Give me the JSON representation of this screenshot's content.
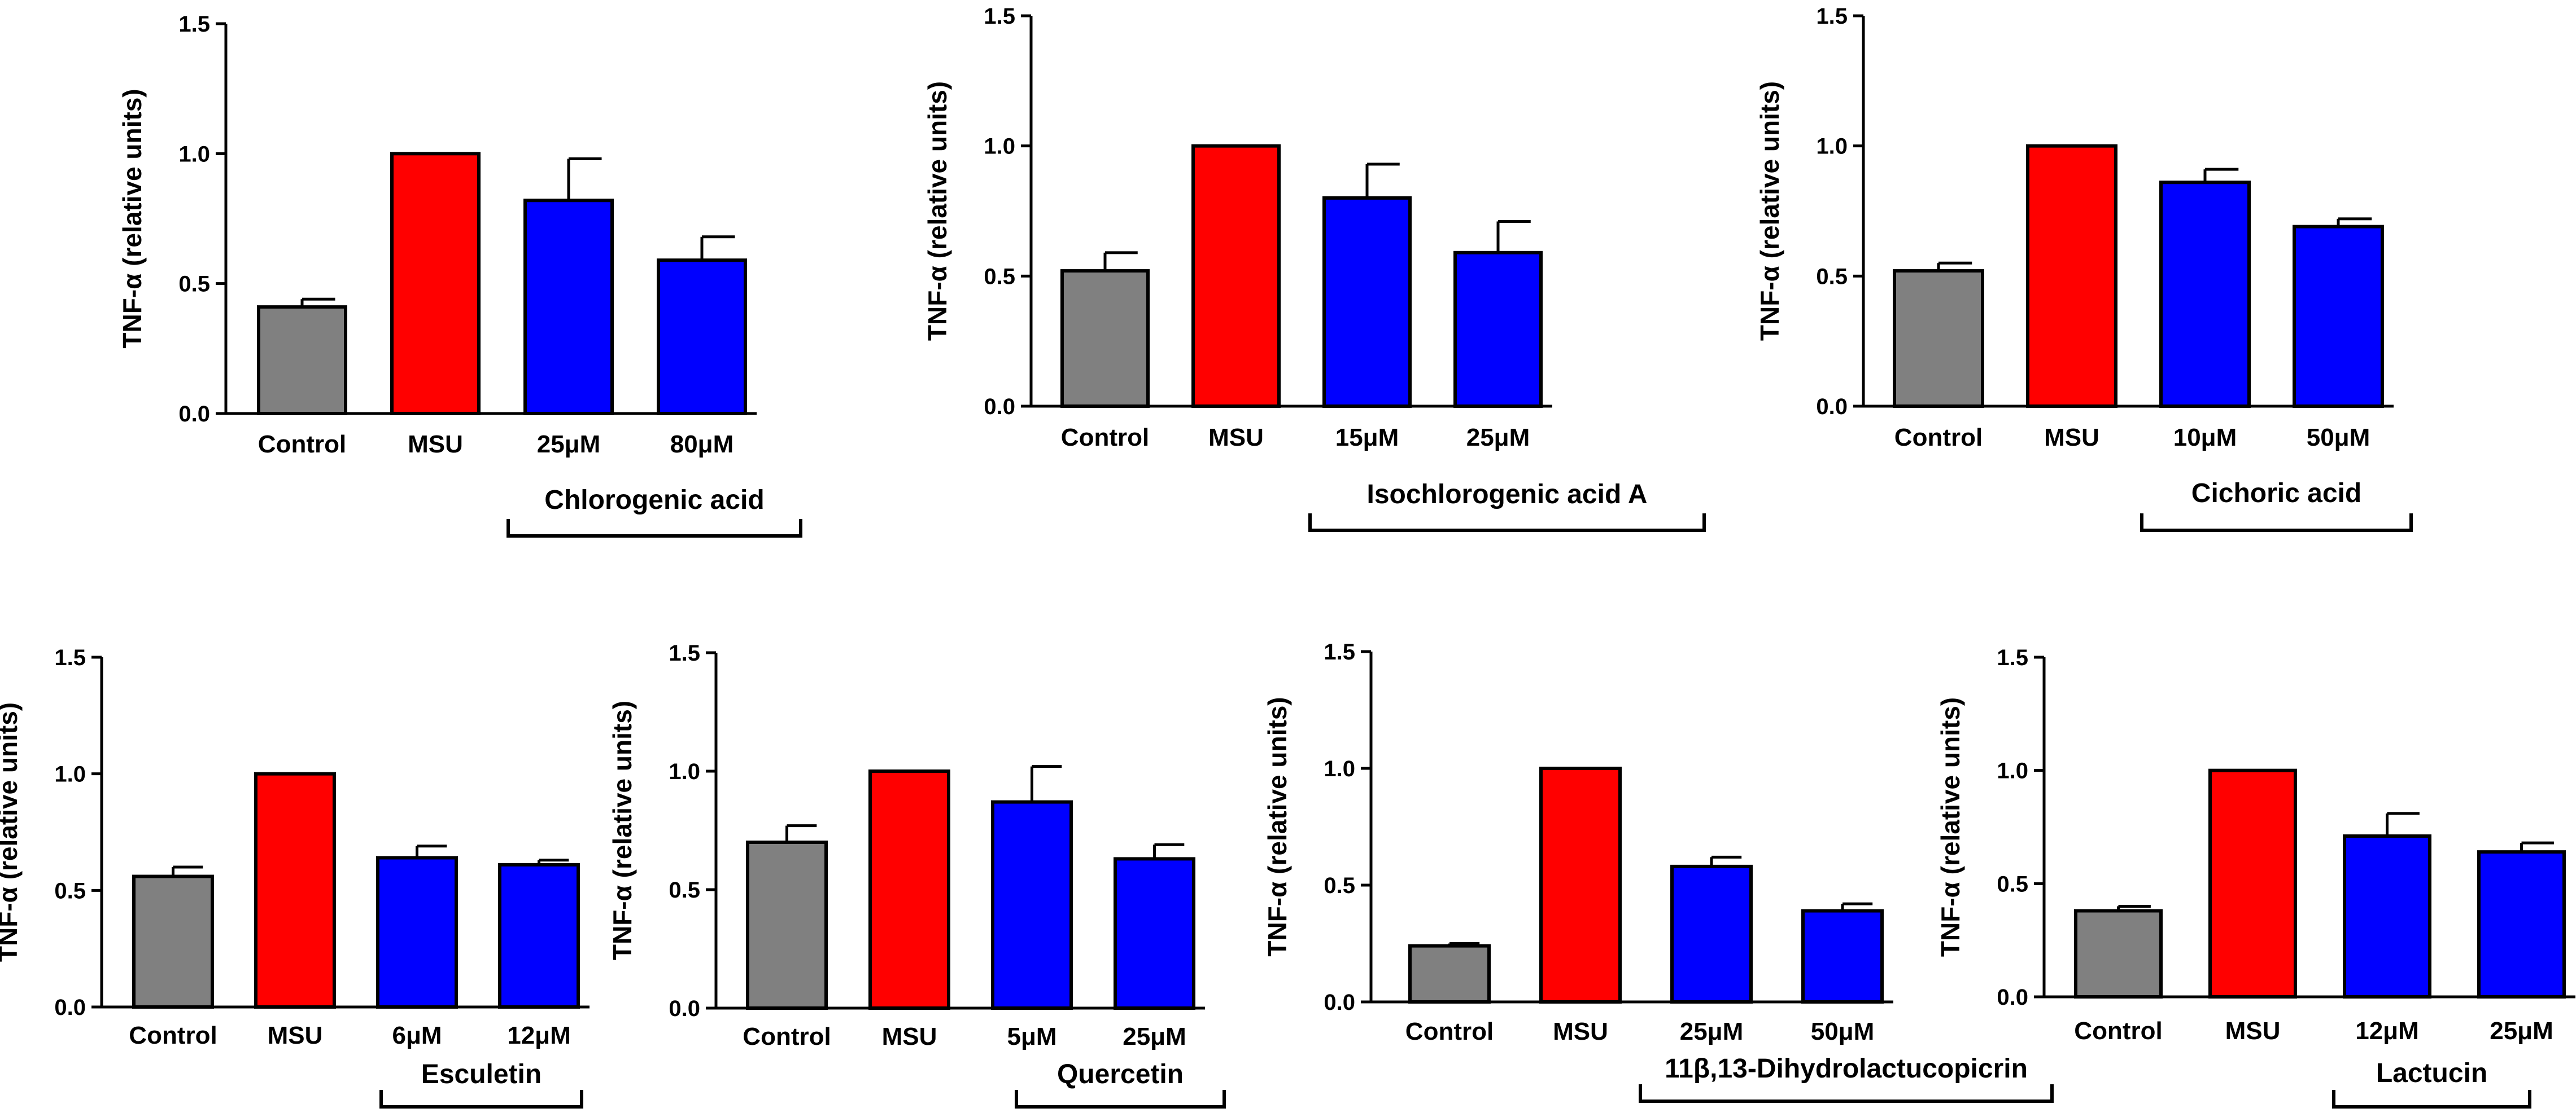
{
  "colors": {
    "control": "#808080",
    "msu": "#ff0000",
    "treatment": "#0000ff",
    "axis": "#000000"
  },
  "chart_data": [
    {
      "type": "bar",
      "ylabel": "TNF-α (relative units)",
      "ylim": [
        0,
        1.5
      ],
      "yticks": [
        "0.0",
        "0.5",
        "1.0",
        "1.5"
      ],
      "yticks_values": [
        0,
        0.5,
        1.0,
        1.5
      ],
      "categories": [
        "Control",
        "MSU",
        "25μM",
        "80μM"
      ],
      "values": [
        0.41,
        1.0,
        0.82,
        0.59
      ],
      "errors": [
        0.03,
        0.0,
        0.16,
        0.09
      ],
      "compound": "Chlorogenic acid"
    },
    {
      "type": "bar",
      "ylabel": "TNF-α (relative units)",
      "ylim": [
        0,
        1.5
      ],
      "yticks": [
        "0.0",
        "0.5",
        "1.0",
        "1.5"
      ],
      "yticks_values": [
        0,
        0.5,
        1.0,
        1.5
      ],
      "categories": [
        "Control",
        "MSU",
        "15μM",
        "25μM"
      ],
      "values": [
        0.52,
        1.0,
        0.8,
        0.59
      ],
      "errors": [
        0.07,
        0.0,
        0.13,
        0.12
      ],
      "compound": "Isochlorogenic acid A"
    },
    {
      "type": "bar",
      "ylabel": "TNF-α (relative units)",
      "ylim": [
        0,
        1.5
      ],
      "yticks": [
        "0.0",
        "0.5",
        "1.0",
        "1.5"
      ],
      "yticks_values": [
        0,
        0.5,
        1.0,
        1.5
      ],
      "categories": [
        "Control",
        "MSU",
        "10μM",
        "50μM"
      ],
      "values": [
        0.52,
        1.0,
        0.86,
        0.69
      ],
      "errors": [
        0.03,
        0.0,
        0.05,
        0.03
      ],
      "compound": "Cichoric acid"
    },
    {
      "type": "bar",
      "ylabel": "TNF-α (relative units)",
      "ylim": [
        0,
        1.5
      ],
      "yticks": [
        "0.0",
        "0.5",
        "1.0",
        "1.5"
      ],
      "yticks_values": [
        0,
        0.5,
        1.0,
        1.5
      ],
      "categories": [
        "Control",
        "MSU",
        "6μM",
        "12μM"
      ],
      "values": [
        0.56,
        1.0,
        0.64,
        0.61
      ],
      "errors": [
        0.04,
        0.0,
        0.05,
        0.02
      ],
      "compound": "Esculetin"
    },
    {
      "type": "bar",
      "ylabel": "TNF-α (relative units)",
      "ylim": [
        0,
        1.5
      ],
      "yticks": [
        "0.0",
        "0.5",
        "1.0",
        "1.5"
      ],
      "yticks_values": [
        0,
        0.5,
        1.0,
        1.5
      ],
      "categories": [
        "Control",
        "MSU",
        "5μM",
        "25μM"
      ],
      "values": [
        0.7,
        1.0,
        0.87,
        0.63
      ],
      "errors": [
        0.07,
        0.0,
        0.15,
        0.06
      ],
      "compound": "Quercetin"
    },
    {
      "type": "bar",
      "ylabel": "TNF-α (relative units)",
      "ylim": [
        0,
        1.5
      ],
      "yticks": [
        "0.0",
        "0.5",
        "1.0",
        "1.5"
      ],
      "yticks_values": [
        0,
        0.5,
        1.0,
        1.5
      ],
      "categories": [
        "Control",
        "MSU",
        "25μM",
        "50μM"
      ],
      "values": [
        0.24,
        1.0,
        0.58,
        0.39
      ],
      "errors": [
        0.01,
        0.0,
        0.04,
        0.03
      ],
      "compound": "11β,13-Dihydrolactucopicrin"
    },
    {
      "type": "bar",
      "ylabel": "TNF-α (relative units)",
      "ylim": [
        0,
        1.5
      ],
      "yticks": [
        "0.0",
        "0.5",
        "1.0",
        "1.5"
      ],
      "yticks_values": [
        0,
        0.5,
        1.0,
        1.5
      ],
      "categories": [
        "Control",
        "MSU",
        "12μM",
        "25μM"
      ],
      "values": [
        0.38,
        1.0,
        0.71,
        0.64
      ],
      "errors": [
        0.02,
        0.0,
        0.1,
        0.04
      ],
      "compound": "Lactucin"
    }
  ]
}
